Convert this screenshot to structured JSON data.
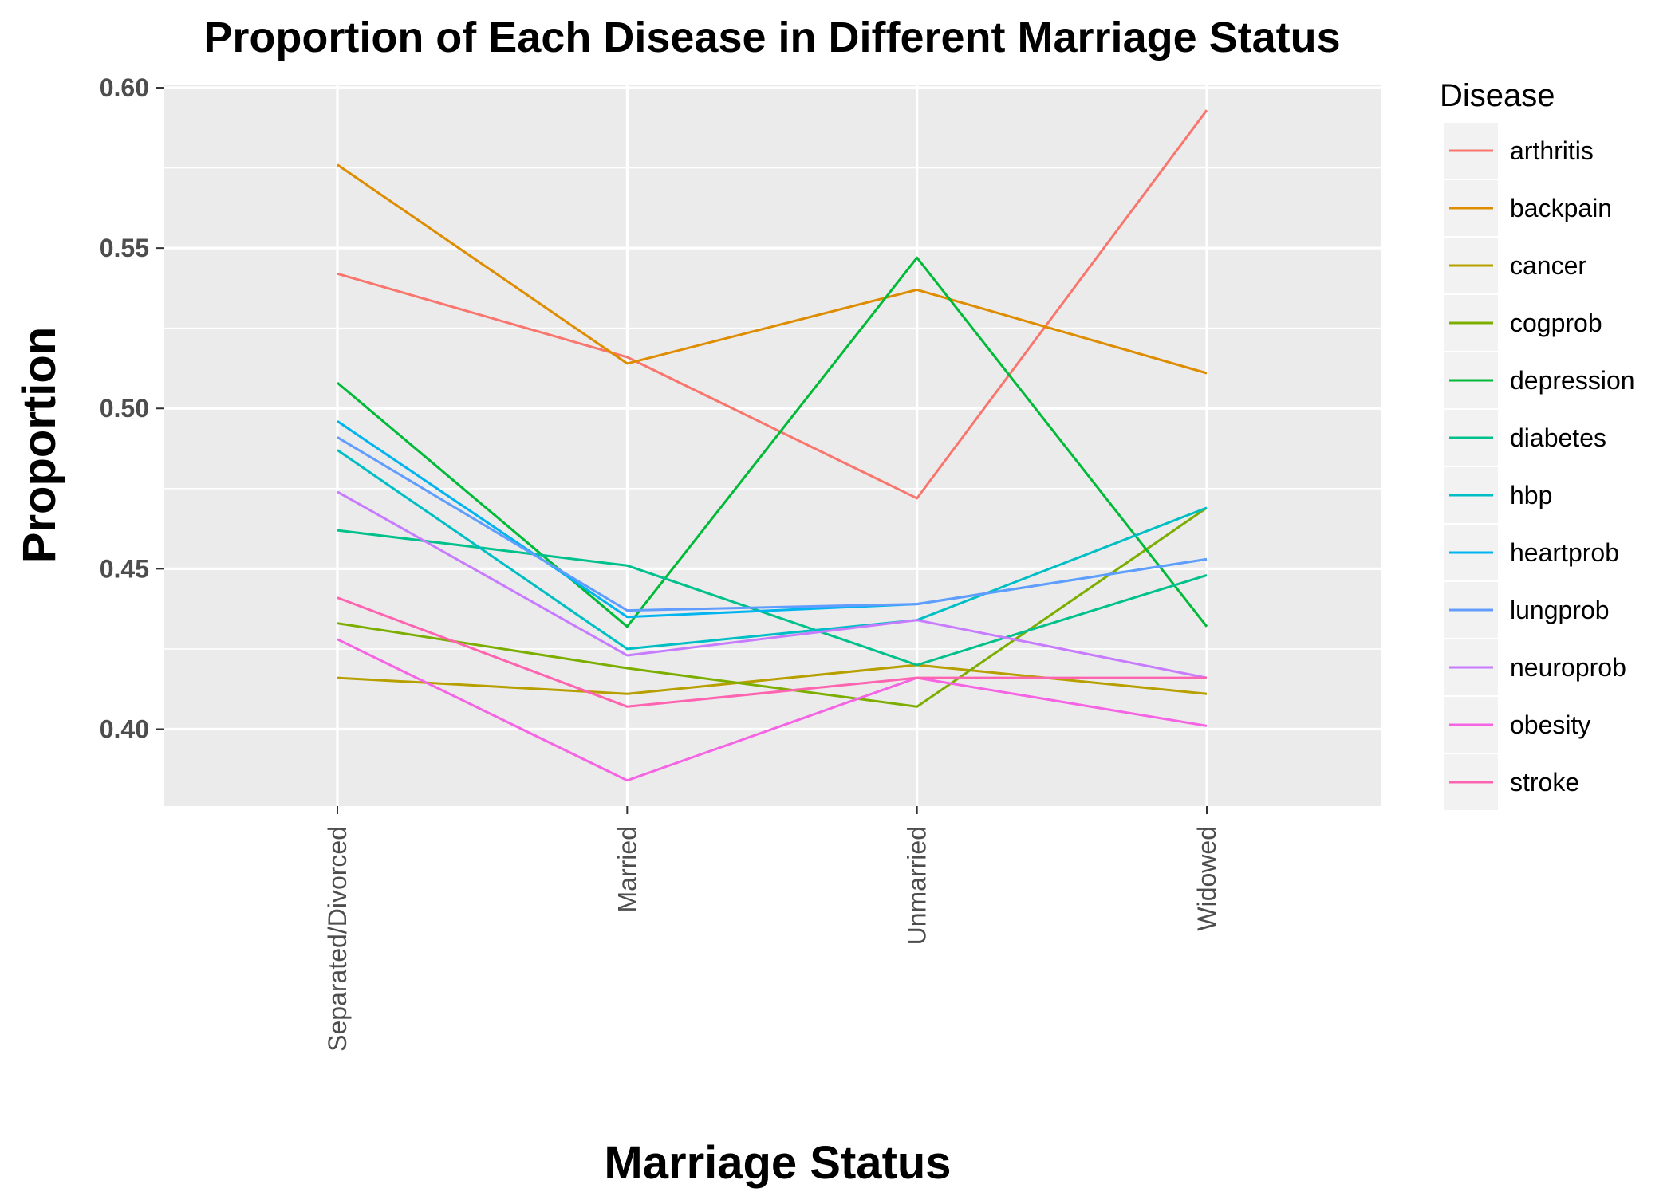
{
  "chart_data": {
    "type": "line",
    "title": "Proportion of Each Disease in Different Marriage Status",
    "xlabel": "Marriage Status",
    "ylabel": "Proportion",
    "categories": [
      "Separated/Divorced",
      "Married",
      "Unmarried",
      "Widowed"
    ],
    "ylim": [
      0.376,
      0.601
    ],
    "yticks": [
      0.4,
      0.45,
      0.5,
      0.55,
      0.6
    ],
    "ytick_labels": [
      "0.40",
      "0.45",
      "0.50",
      "0.55",
      "0.60"
    ],
    "grid": true,
    "legend_title": "Disease",
    "legend_position": "right",
    "series": [
      {
        "name": "arthritis",
        "color": "#F8766D",
        "values": [
          0.542,
          0.516,
          0.472,
          0.593
        ]
      },
      {
        "name": "backpain",
        "color": "#DE8C00",
        "values": [
          0.576,
          0.514,
          0.537,
          0.511
        ]
      },
      {
        "name": "cancer",
        "color": "#B79F00",
        "values": [
          0.416,
          0.411,
          0.42,
          0.411
        ]
      },
      {
        "name": "cogprob",
        "color": "#7CAE00",
        "values": [
          0.433,
          0.419,
          0.407,
          0.469
        ]
      },
      {
        "name": "depression",
        "color": "#00BA38",
        "values": [
          0.508,
          0.432,
          0.547,
          0.432
        ]
      },
      {
        "name": "diabetes",
        "color": "#00C08B",
        "values": [
          0.462,
          0.451,
          0.42,
          0.448
        ]
      },
      {
        "name": "hbp",
        "color": "#00BFC4",
        "values": [
          0.487,
          0.425,
          0.434,
          0.469
        ]
      },
      {
        "name": "heartprob",
        "color": "#00B4F0",
        "values": [
          0.496,
          0.435,
          0.439,
          0.453
        ]
      },
      {
        "name": "lungprob",
        "color": "#619CFF",
        "values": [
          0.491,
          0.437,
          0.439,
          0.453
        ]
      },
      {
        "name": "neuroprob",
        "color": "#C77CFF",
        "values": [
          0.474,
          0.423,
          0.434,
          0.416
        ]
      },
      {
        "name": "obesity",
        "color": "#F564E3",
        "values": [
          0.428,
          0.384,
          0.416,
          0.401
        ]
      },
      {
        "name": "stroke",
        "color": "#FF64B0",
        "values": [
          0.441,
          0.407,
          0.416,
          0.416
        ]
      }
    ]
  }
}
